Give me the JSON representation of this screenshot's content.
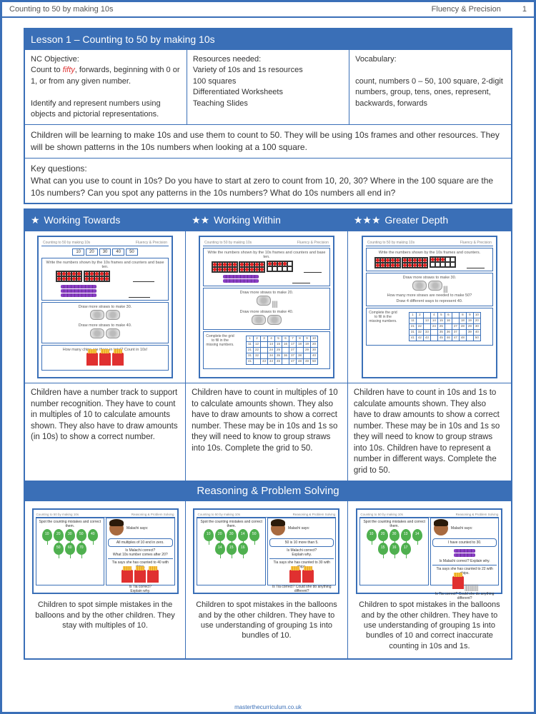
{
  "page": {
    "title_left": "Counting to 50 by making 10s",
    "title_right": "Fluency & Precision",
    "page_number": "1",
    "footer": "masterthecurriculum.co.uk"
  },
  "lesson": {
    "title": "Lesson 1 – Counting to 50 by making 10s",
    "nc_objective_label": "NC Objective:",
    "nc_objective_1a": "Count to ",
    "nc_objective_fifty": "fifty",
    "nc_objective_1b": ", forwards, beginning with 0 or 1, or from any given number.",
    "nc_objective_2": "Identify and represent numbers using objects and pictorial representations.",
    "resources_label": "Resources needed:",
    "resources": "Variety of 10s and 1s resources\n100 squares\nDifferentiated Worksheets\nTeaching Slides",
    "vocab_label": "Vocabulary:",
    "vocab": "count, numbers 0 – 50, 100 square, 2-digit numbers, group, tens, ones, represent, backwards, forwards",
    "summary": "Children will be learning to make 10s and use them to count to 50. They will be using 10s frames and other resources. They will be shown patterns in the 10s numbers when looking at a 100 square.",
    "keyq_label": "Key questions:",
    "keyq": "What can you use to count in 10s? Do you have to start at zero to count from 10, 20, 30? Where in the 100 square are the 10s numbers? Can you spot any patterns in the 10s numbers? What do 10s numbers all end in?"
  },
  "levels": {
    "wt_label": "Working Towards",
    "ww_label": "Working Within",
    "gd_label": "Greater Depth",
    "thumb_header_left": "Counting to 50 by making 10s",
    "thumb_header_right": "Fluency & Precision",
    "wt_track": [
      "10",
      "20",
      "30",
      "40",
      "50"
    ],
    "wt_task1": "Write the numbers shown by the 10s frames and counters and base ten.",
    "wt_task2": "Draw more straws to make 30.",
    "wt_task3": "Draw more straws to make 40.",
    "wt_task4": "How many chips are there in total? Count in 10s!",
    "ww_task1": "Write the numbers shown by the 10s frames and counters and base ten.",
    "ww_task2": "Draw more straws to make 20.",
    "ww_task3": "Draw more straws to make 40.",
    "ww_gridlabel": "Complete the grid to fill in the missing numbers.",
    "gd_task1": "Write the numbers shown by the 10s frames and counters.",
    "gd_task2": "Draw more straws to make 30.",
    "gd_task3": "How many more straws are needed to make 50?",
    "gd_task4": "Draw 4 different ways to represent 40.",
    "gd_gridlabel": "Complete the grid to fill in the missing numbers.",
    "wt_desc": "Children have a number track to support number recognition. They have to count in multiples of 10 to calculate amounts shown. They also have to draw amounts (in 10s) to show a correct number.",
    "ww_desc": "Children have to count in multiples of 10 to calculate amounts shown. They also have to draw amounts to show a correct number. These may be in 10s and 1s so they will need to know to group straws into 10s. Complete the grid to 50.",
    "gd_desc": "Children have to count in 10s and 1s to calculate amounts shown. They also have to draw amounts to show a correct number. These may be in 10s and 1s so they will need to know to group straws into 10s. Children have to represent a number in different ways. Complete the grid to 50."
  },
  "rp": {
    "title": "Reasoning & Problem Solving",
    "spot": "Spot the counting mistakes and correct them.",
    "malachi": "Malachi says:",
    "wt_speech1": "All multiples of 10 end in zero.",
    "wt_q1": "Is Malachi correct?",
    "wt_q2": "What 10s number comes after 20?",
    "wt_tia": "Tia says she has counted to 40 with chips.",
    "wt_tiaq": "Is Tia correct?\nExplain why.",
    "ww_speech1": "50 is 10 more than 5.",
    "ww_q1": "Is Malachi correct?\nExplain why.",
    "ww_tia": "Tia says she has counted to 30 with chips.",
    "ww_tiaq": "Is Tia correct? Could she do anything different?",
    "gd_speech1": "I have counted to 30.",
    "gd_q1": "Is Malachi correct? Explain why.",
    "gd_tia": "Tia says she has counted to 22 with chips.",
    "gd_tiaq": "Is Tia correct? Could she do anything different?",
    "wt_balloons": [
      "10",
      "20",
      "30",
      "50",
      "40",
      "50",
      "60",
      "70"
    ],
    "ww_balloons": [
      "10",
      "20",
      "30",
      "14",
      "50",
      "14",
      "15",
      "16"
    ],
    "gd_balloons": [
      "10",
      "20",
      "30",
      "13",
      "14",
      "15",
      "16",
      "17"
    ],
    "wt_desc": "Children to spot simple mistakes in the balloons and by the other children. They stay with multiples of 10.",
    "ww_desc": "Children to spot mistakes in the balloons and by the other children. They have to use understanding of grouping 1s into bundles of 10.",
    "gd_desc": "Children to spot mistakes in the balloons and by the other children. They have to use understanding of grouping 1s into bundles of 10 and correct inaccurate counting in 10s and 1s."
  },
  "colors": {
    "primary": "#3a6fb7",
    "accent_red": "#e02020",
    "balloon": "#4fb04f"
  }
}
